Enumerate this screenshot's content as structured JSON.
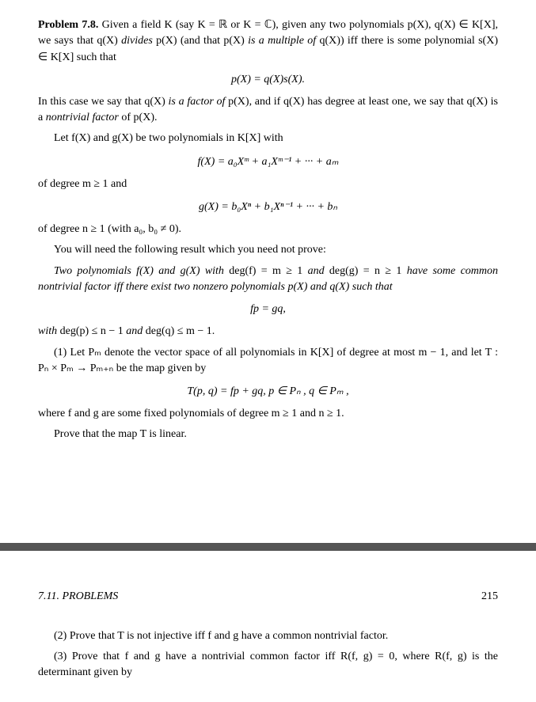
{
  "page1": {
    "p1_a": "Problem 7.8.",
    "p1_b": " Given a field K (say K = ℝ or K = ℂ), given any two polynomials p(X), q(X) ∈ K[X], we says that q(X) ",
    "p1_c": "divides",
    "p1_d": " p(X) (and that p(X) ",
    "p1_e": "is a multiple of",
    "p1_f": " q(X)) iff there is some polynomial s(X) ∈ K[X] such that",
    "eq1": "p(X) = q(X)s(X).",
    "p2_a": "In this case we say that q(X) ",
    "p2_b": "is a factor of",
    "p2_c": " p(X), and if q(X) has degree at least one, we say that q(X) is a ",
    "p2_d": "nontrivial factor",
    "p2_e": " of p(X).",
    "p3": "Let f(X) and g(X) be two polynomials in K[X] with",
    "eq2": "f(X) = a₀Xᵐ + a₁Xᵐ⁻¹ + ··· + aₘ",
    "p4": "of degree m ≥ 1 and",
    "eq3": "g(X) = b₀Xⁿ + b₁Xⁿ⁻¹ + ··· + bₙ",
    "p5": "of degree n ≥ 1 (with a₀, b₀ ≠ 0).",
    "p6": "You will need the following result which you need not prove:",
    "p7_a": "Two polynomials f(X) and g(X) with",
    "p7_b": " deg(f) = m ≥ 1 ",
    "p7_c": "and",
    "p7_d": " deg(g) = n ≥ 1 ",
    "p7_e": "have some common nontrivial factor iff there exist two nonzero polynomials p(X) and q(X) such that",
    "eq4": "fp = gq,",
    "p8_a": "with",
    "p8_b": " deg(p) ≤ n − 1 ",
    "p8_c": "and",
    "p8_d": " deg(q) ≤ m − 1.",
    "p9": "(1) Let Pₘ denote the vector space of all polynomials in K[X] of degree at most m − 1, and let T : Pₙ × Pₘ → Pₘ₊ₙ be the map given by",
    "eq5": "T(p, q) = fp + gq,    p ∈ Pₙ , q ∈ Pₘ ,",
    "p10": "where f and g are some fixed polynomials of degree m ≥ 1 and n ≥ 1.",
    "p11": "Prove that the map T is linear."
  },
  "page2": {
    "section": "7.11.  PROBLEMS",
    "pageNum": "215",
    "p1": "(2) Prove that T is not injective iff f and g have a common nontrivial factor.",
    "p2": "(3) Prove that f and g have a nontrivial common factor iff R(f, g) = 0, where R(f, g) is the determinant given by"
  }
}
